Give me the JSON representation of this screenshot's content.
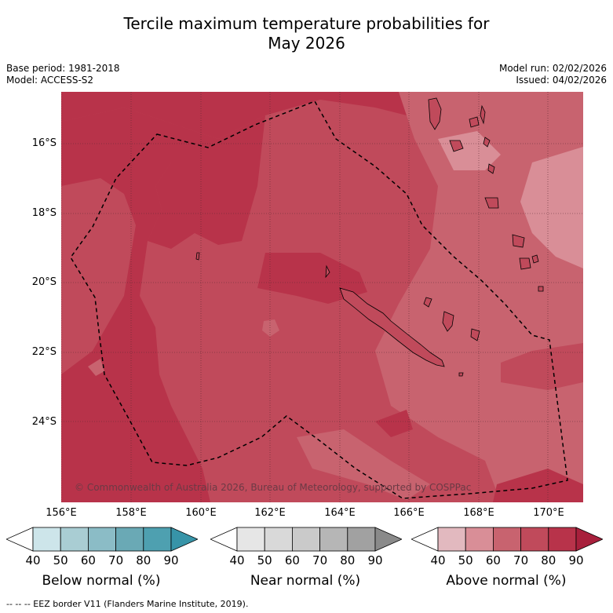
{
  "title": {
    "line1": "Tercile maximum temperature probabilities for",
    "line2": "May 2026"
  },
  "meta": {
    "base_period": "Base period: 1981-2018",
    "model": "Model: ACCESS-S2",
    "model_run": "Model run: 02/02/2026",
    "issued": "Issued: 04/02/2026"
  },
  "map": {
    "lat_labels": [
      "16°S",
      "18°S",
      "20°S",
      "22°S",
      "24°S"
    ],
    "lon_labels": [
      "156°E",
      "158°E",
      "160°E",
      "162°E",
      "164°E",
      "166°E",
      "168°E",
      "170°E"
    ],
    "copyright": "© Commonwealth of Australia 2026, Bureau of Meteorology, supported by COSPPac",
    "colors": {
      "above_60_70": "#c8636f",
      "above_70_80": "#c04a5b",
      "above_80_90": "#b8334a",
      "above_50_60": "#d98e97",
      "eez_line": "#000000"
    }
  },
  "colorbars": [
    {
      "label": "Below normal (%)",
      "ticks": [
        "40",
        "50",
        "60",
        "70",
        "80",
        "90"
      ],
      "colors": [
        "#ffffff",
        "#cde5ea",
        "#a9cdd3",
        "#8bbcc6",
        "#6aa9b5",
        "#4ea0b0",
        "#3794a8"
      ]
    },
    {
      "label": "Near normal (%)",
      "ticks": [
        "40",
        "50",
        "60",
        "70",
        "80",
        "90"
      ],
      "colors": [
        "#ffffff",
        "#e6e6e6",
        "#d9d9d9",
        "#cacaca",
        "#b6b6b6",
        "#a1a1a1",
        "#8a8a8a"
      ]
    },
    {
      "label": "Above normal (%)",
      "ticks": [
        "40",
        "50",
        "60",
        "70",
        "80",
        "90"
      ],
      "colors": [
        "#ffffff",
        "#e2b9bf",
        "#d98e97",
        "#c8636f",
        "#c04a5b",
        "#b8334a",
        "#a8203c"
      ]
    }
  ],
  "footnote": "--  --  -- EEZ border V11 (Flanders Marine Institute, 2019)."
}
